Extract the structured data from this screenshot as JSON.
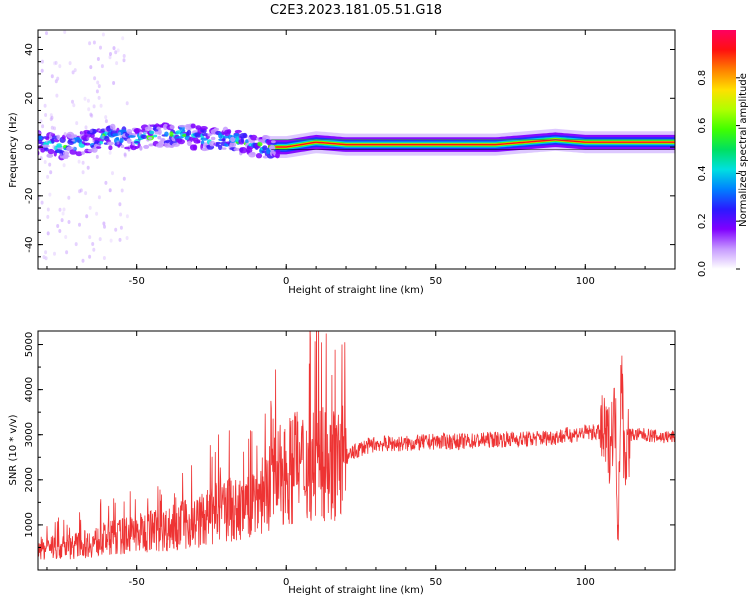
{
  "title": "C2E3.2023.181.05.51.G18",
  "chart_data": [
    {
      "type": "heatmap",
      "xlabel": "Height of straight line (km)",
      "ylabel": "Frequency (Hz)",
      "xlim": [
        -83,
        130
      ],
      "ylim": [
        -50,
        48
      ],
      "xticks": [
        "-50",
        "0",
        "50",
        "100"
      ],
      "yticks": [
        "-40",
        "-20",
        "0",
        "20",
        "40"
      ],
      "xtick_values": [
        -50,
        0,
        50,
        100
      ],
      "ytick_values": [
        -40,
        -20,
        0,
        20,
        40
      ],
      "colorbar": {
        "label": "Normalized spectral amplitude",
        "range": [
          0,
          1
        ],
        "ticks": [
          "0.0",
          "0.2",
          "0.4",
          "0.6",
          "0.8"
        ],
        "tick_values": [
          0.0,
          0.2,
          0.4,
          0.6,
          0.8
        ],
        "colors": [
          "#ffffff",
          "#c79bff",
          "#8000ff",
          "#2a1aff",
          "#0080ff",
          "#00e0e0",
          "#00e060",
          "#40ff00",
          "#b0ff00",
          "#ffe000",
          "#ff8000",
          "#ff1010",
          "#ff0060"
        ]
      },
      "ridge": {
        "x": [
          -83,
          -75,
          -70,
          -65,
          -60,
          -55,
          -50,
          -45,
          -40,
          -35,
          -30,
          -25,
          -20,
          -15,
          -10,
          -5,
          0,
          5,
          10,
          20,
          30,
          40,
          50,
          60,
          70,
          80,
          90,
          100,
          110,
          120,
          130
        ],
        "y": [
          2,
          0,
          1,
          3,
          4,
          4,
          3,
          5,
          5,
          5,
          4,
          3,
          3,
          2,
          1,
          0,
          0,
          1,
          2,
          1,
          1,
          1,
          1,
          1,
          1,
          2,
          3,
          2,
          2,
          2,
          2
        ]
      }
    },
    {
      "type": "line",
      "xlabel": "Height of straight line (km)",
      "ylabel": "SNR (10 * v/v)",
      "xlim": [
        -83,
        130
      ],
      "ylim": [
        0,
        5300
      ],
      "xticks": [
        "-50",
        "0",
        "50",
        "100"
      ],
      "yticks": [
        "1000",
        "2000",
        "3000",
        "4000",
        "5000"
      ],
      "xtick_values": [
        -50,
        0,
        50,
        100
      ],
      "ytick_values": [
        1000,
        2000,
        3000,
        4000,
        5000
      ],
      "series": [
        {
          "color": "#ee3333",
          "x": [
            -83,
            -80,
            -75,
            -70,
            -65,
            -60,
            -55,
            -50,
            -45,
            -40,
            -35,
            -30,
            -25,
            -22,
            -20,
            -15,
            -10,
            -5,
            0,
            5,
            10,
            15,
            20,
            25,
            30,
            40,
            50,
            60,
            70,
            80,
            90,
            95,
            100,
            105,
            108,
            110,
            111,
            112,
            113,
            115,
            120,
            125,
            130
          ],
          "y": [
            400,
            500,
            500,
            550,
            600,
            700,
            750,
            800,
            900,
            900,
            1000,
            1050,
            1200,
            1300,
            1350,
            1300,
            1600,
            1900,
            2200,
            2300,
            2400,
            2300,
            2500,
            2700,
            2800,
            2800,
            2850,
            2850,
            2900,
            2900,
            2950,
            3000,
            3050,
            3050,
            2800,
            3500,
            1000,
            4700,
            2500,
            3000,
            3000,
            2950,
            2950
          ]
        }
      ]
    }
  ]
}
